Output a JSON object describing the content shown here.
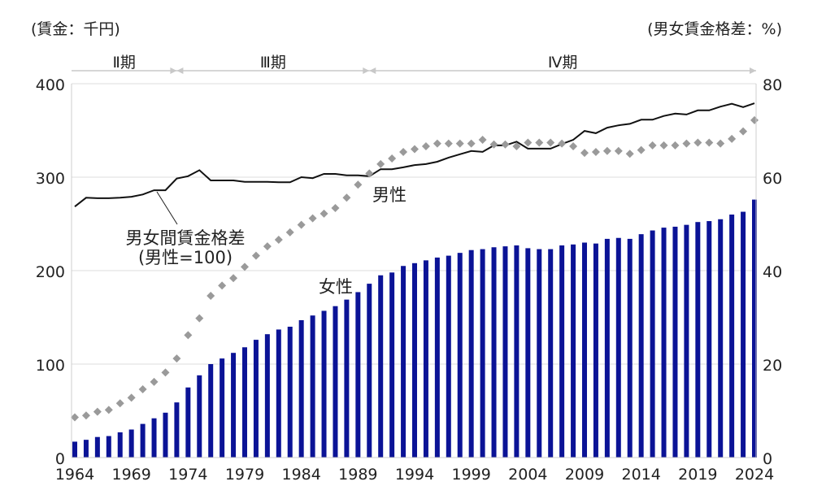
{
  "chart_data": {
    "type": "bar+line",
    "left_axis_label": "(賃金：千円)",
    "right_axis_label": "(男女賃金格差：%)",
    "left_ylim": [
      0,
      400
    ],
    "left_ticks": [
      "0",
      "100",
      "200",
      "300",
      "400"
    ],
    "right_ylim": [
      0,
      80
    ],
    "right_ticks": [
      "0",
      "20",
      "40",
      "60",
      "80"
    ],
    "x_tick_labels": [
      "1964",
      "1969",
      "1974",
      "1979",
      "1984",
      "1989",
      "1994",
      "1999",
      "2004",
      "2009",
      "2014",
      "2019",
      "2024"
    ],
    "grid": true,
    "periods": [
      {
        "label": "Ⅱ期",
        "from": 1964,
        "to": 1973
      },
      {
        "label": "Ⅲ期",
        "from": 1973,
        "to": 1990
      },
      {
        "label": "Ⅳ期",
        "from": 1990,
        "to": 2024
      }
    ],
    "years_start": 1964,
    "years_end": 2024,
    "series": [
      {
        "name": "女性",
        "type": "bar",
        "axis": "left",
        "color": "#0b1396",
        "values": [
          17,
          19,
          22,
          23,
          27,
          30,
          36,
          42,
          48,
          59,
          75,
          88,
          100,
          106,
          112,
          118,
          126,
          132,
          137,
          140,
          147,
          152,
          157,
          162,
          169,
          177,
          186,
          195,
          198,
          205,
          208,
          211,
          214,
          216,
          219,
          222,
          223,
          225,
          226,
          227,
          224,
          223,
          223,
          227,
          228,
          230,
          229,
          234,
          235,
          234,
          239,
          243,
          246,
          247,
          249,
          252,
          253,
          255,
          260,
          263,
          276
        ]
      },
      {
        "name": "男性",
        "type": "dotted-line",
        "axis": "left",
        "color": "#9a9a9a",
        "values": [
          43,
          45,
          49,
          51,
          58,
          64,
          73,
          81,
          91,
          106,
          131,
          149,
          173,
          184,
          192,
          204,
          216,
          226,
          233,
          241,
          249,
          256,
          261,
          267,
          278,
          292,
          304,
          314,
          320,
          327,
          330,
          333,
          336,
          336,
          336,
          336,
          340,
          335,
          335,
          333,
          337,
          337,
          337,
          336,
          333,
          326,
          327,
          328,
          328,
          325,
          329,
          334,
          334,
          334,
          336,
          337,
          337,
          336,
          341,
          349,
          361
        ]
      },
      {
        "name": "男女間賃金格差",
        "type": "line",
        "axis": "right",
        "color": "#111111",
        "values": [
          53.7,
          55.6,
          55.5,
          55.5,
          55.6,
          55.8,
          56.3,
          57.2,
          57.2,
          59.7,
          60.2,
          61.5,
          59.3,
          59.3,
          59.3,
          59.0,
          59.0,
          59.0,
          58.9,
          58.9,
          60.0,
          59.8,
          60.7,
          60.7,
          60.4,
          60.4,
          60.2,
          61.7,
          61.7,
          62.1,
          62.6,
          62.8,
          63.3,
          64.2,
          64.9,
          65.6,
          65.4,
          66.8,
          66.8,
          67.6,
          66.1,
          66.1,
          66.1,
          67.1,
          68.0,
          69.9,
          69.4,
          70.6,
          71.1,
          71.4,
          72.3,
          72.3,
          73.1,
          73.6,
          73.4,
          74.3,
          74.3,
          75.1,
          75.7,
          75.0,
          75.8
        ]
      }
    ],
    "annotations": {
      "gap_label_line1": "男女間賃金格差",
      "gap_label_line2": "(男性=100)",
      "male_label": "男性",
      "female_label": "女性"
    }
  }
}
